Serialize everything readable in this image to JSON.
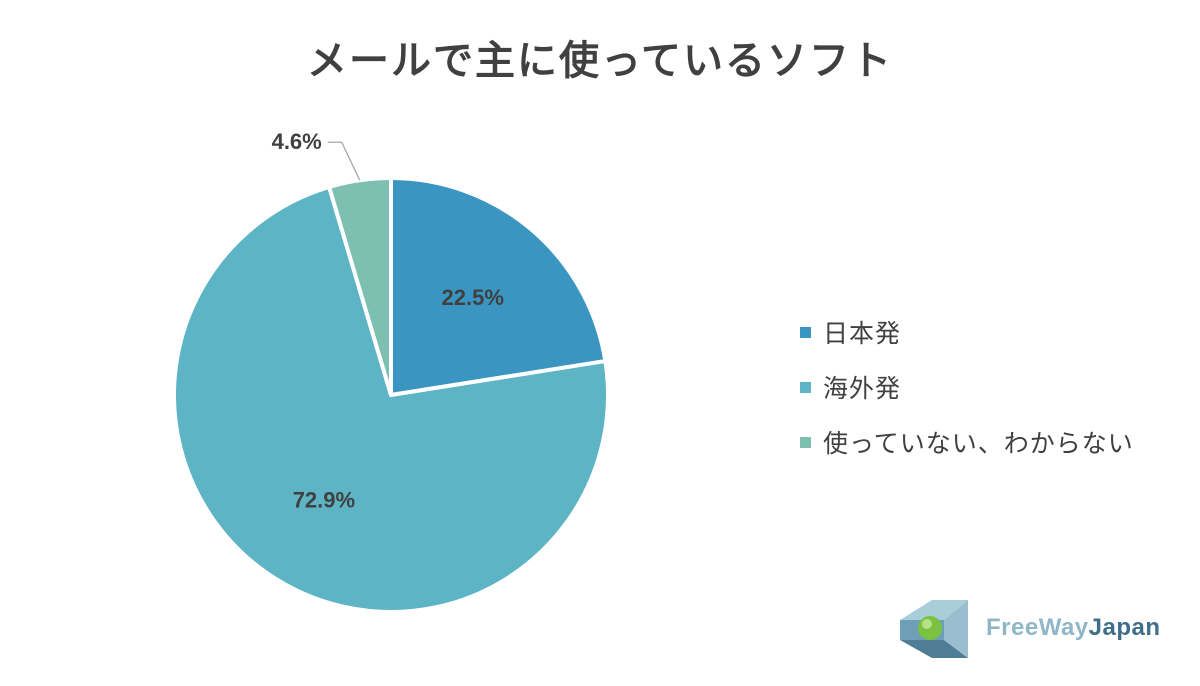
{
  "chart_data": {
    "type": "pie",
    "title": "メールで主に使っているソフト",
    "categories": [
      "日本発",
      "海外発",
      "使っていない、わからない"
    ],
    "values": [
      22.5,
      72.9,
      4.6
    ],
    "labels": [
      "22.5%",
      "72.9%",
      "4.6%"
    ],
    "colors": [
      "#3a96c0",
      "#5cb4c4",
      "#7dbfb0"
    ],
    "legend_position": "right"
  },
  "logo": {
    "text_part1": "FreeWay",
    "text_part2": "Japan",
    "color1": "#8fb7c8",
    "color2": "#3f6f88"
  }
}
